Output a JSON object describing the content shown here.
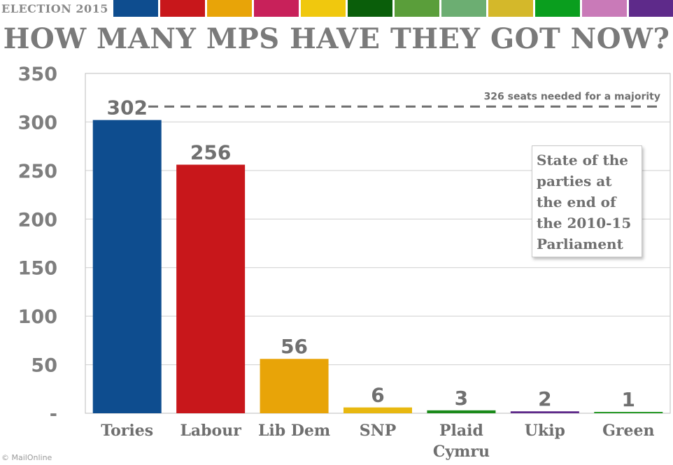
{
  "header": {
    "section_label": "ELECTION 2015",
    "party_colors": [
      "#0e4d8f",
      "#c8171b",
      "#e8a408",
      "#c8215a",
      "#f0c80e",
      "#0a5e0a",
      "#5a9e3a",
      "#6cae72",
      "#d4b82a",
      "#0a9e1e",
      "#c97ab8",
      "#5e2a8a"
    ]
  },
  "headline": "HOW MANY MPS HAVE THEY GOT NOW?",
  "chart_data": {
    "type": "bar",
    "categories": [
      "Tories",
      "Labour",
      "Lib Dem",
      "SNP",
      "Plaid Cymru",
      "Ukip",
      "Green"
    ],
    "values": [
      302,
      256,
      56,
      6,
      3,
      2,
      1
    ],
    "value_labels": [
      "302",
      "256",
      "56",
      "6",
      "3",
      "2",
      "1"
    ],
    "bar_colors": [
      "#0e4d8f",
      "#c8171b",
      "#e8a408",
      "#e8b810",
      "#1a8a1a",
      "#5e2a8a",
      "#2a9a2a"
    ],
    "y_ticks": [
      {
        "value": 0,
        "label": "-"
      },
      {
        "value": 50,
        "label": "50"
      },
      {
        "value": 100,
        "label": "100"
      },
      {
        "value": 150,
        "label": "150"
      },
      {
        "value": 200,
        "label": "200"
      },
      {
        "value": 250,
        "label": "250"
      },
      {
        "value": 300,
        "label": "300"
      },
      {
        "value": 350,
        "label": "350"
      }
    ],
    "ylim": [
      0,
      350
    ],
    "grid": true,
    "title": "",
    "xlabel": "",
    "ylabel": "",
    "reference_line": {
      "value": 326,
      "label": "326 seats needed for a majority",
      "style": "dashed"
    }
  },
  "info_box": {
    "lines": [
      "State of the",
      "parties at",
      "the end of",
      "the 2010-15",
      "Parliament"
    ]
  },
  "footer": {
    "credit": "© MailOnline"
  }
}
